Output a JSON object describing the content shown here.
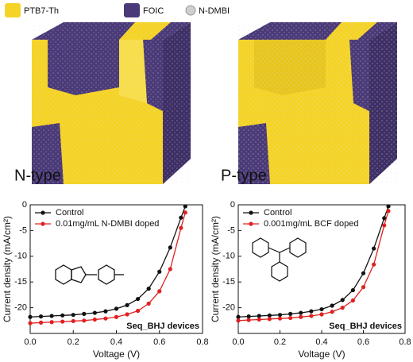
{
  "legend": [
    {
      "label": "PTB7-Th",
      "color": "#f5d327"
    },
    {
      "label": "FOIC",
      "color": "#4b3a78"
    },
    {
      "label": "N-DMBI",
      "color": "#cfcfcf"
    }
  ],
  "panels": [
    "N-type",
    "P-type"
  ],
  "chart_data": [
    {
      "type": "line",
      "x_label": "Voltage (V)",
      "y_label": "Current density (mA/cm²)",
      "annotation": "Seq_BHJ devices",
      "x": [
        0,
        0.05,
        0.1,
        0.15,
        0.2,
        0.25,
        0.3,
        0.35,
        0.4,
        0.45,
        0.5,
        0.55,
        0.6,
        0.65,
        0.7,
        0.72
      ],
      "series": [
        {
          "name": "Control",
          "color": "#111111",
          "values": [
            -21.8,
            -21.7,
            -21.6,
            -21.5,
            -21.4,
            -21.2,
            -21.0,
            -20.7,
            -20.2,
            -19.5,
            -18.3,
            -16.3,
            -13.0,
            -8.3,
            -2.5,
            -0.3
          ]
        },
        {
          "name": "0.01mg/mL N-DMBI doped",
          "color": "#e02020",
          "values": [
            -23.0,
            -22.9,
            -22.8,
            -22.7,
            -22.6,
            -22.5,
            -22.3,
            -22.1,
            -21.8,
            -21.3,
            -20.6,
            -19.2,
            -16.8,
            -12.5,
            -4.5,
            -1.5
          ]
        }
      ],
      "xlim": [
        0,
        0.8
      ],
      "xticks": [
        {
          "value": 0,
          "label": "0.0"
        },
        0.2,
        0.4,
        0.6,
        0.8
      ],
      "ylim": [
        -25,
        0
      ],
      "yticks": [
        0,
        -5,
        -10,
        -15,
        -20
      ]
    },
    {
      "type": "line",
      "x_label": "Voltage (V)",
      "y_label": "Current density (mA/cm²)",
      "annotation": "Seq_BHJ devices",
      "x": [
        0,
        0.05,
        0.1,
        0.15,
        0.2,
        0.25,
        0.3,
        0.35,
        0.4,
        0.45,
        0.5,
        0.55,
        0.6,
        0.65,
        0.7,
        0.72
      ],
      "series": [
        {
          "name": "Control",
          "color": "#111111",
          "values": [
            -21.8,
            -21.7,
            -21.6,
            -21.5,
            -21.4,
            -21.2,
            -21.0,
            -20.7,
            -20.3,
            -19.6,
            -18.5,
            -16.6,
            -13.3,
            -8.5,
            -2.6,
            -0.3
          ]
        },
        {
          "name": "0.001mg/mL BCF doped",
          "color": "#e02020",
          "values": [
            -22.5,
            -22.4,
            -22.3,
            -22.2,
            -22.1,
            -22.0,
            -21.8,
            -21.6,
            -21.3,
            -20.8,
            -20.0,
            -18.6,
            -16.0,
            -11.6,
            -4.0,
            -1.2
          ]
        }
      ],
      "xlim": [
        0,
        0.8
      ],
      "xticks": [
        {
          "value": 0,
          "label": "0.0"
        },
        0.2,
        0.4,
        0.6,
        0.8
      ],
      "ylim": [
        -25,
        0
      ],
      "yticks": [
        0,
        -5,
        -10,
        -15,
        -20
      ]
    }
  ]
}
